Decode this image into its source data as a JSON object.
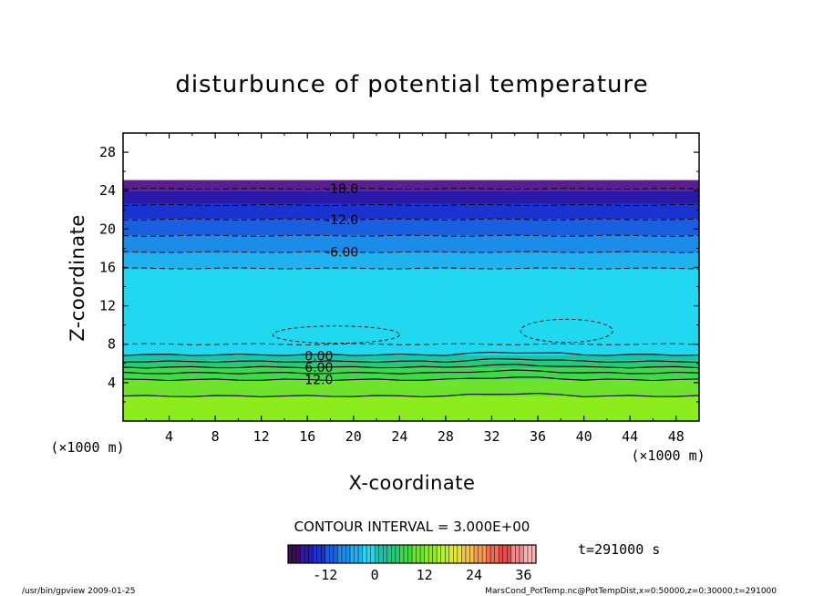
{
  "chart_data": {
    "type": "contour",
    "title": "disturbunce of potential temperature",
    "xlabel": "X-coordinate",
    "ylabel": "Z-coordinate",
    "x_unit_left": "(×1000 m)",
    "x_unit_right": "(×1000 m)",
    "xlim": [
      0,
      50
    ],
    "ylim": [
      0,
      30
    ],
    "x_ticks": [
      4,
      8,
      12,
      16,
      20,
      24,
      28,
      32,
      36,
      40,
      44,
      48
    ],
    "y_ticks": [
      4,
      8,
      12,
      16,
      20,
      24,
      28
    ],
    "contour_interval_text": "CONTOUR INTERVAL = 3.000E+00",
    "contour_labels": [
      {
        "text": "-18.0",
        "x": 19,
        "z": 24.2
      },
      {
        "text": "-12.0",
        "x": 19,
        "z": 21.0
      },
      {
        "text": "-6.00",
        "x": 19,
        "z": 17.6
      },
      {
        "text": "0.00",
        "x": 17,
        "z": 6.8
      },
      {
        "text": "6.00",
        "x": 17,
        "z": 5.6
      },
      {
        "text": "12.0",
        "x": 17,
        "z": 4.3
      }
    ],
    "layers": [
      {
        "z0": 0,
        "z1": 2.5,
        "color": "#8cec1c"
      },
      {
        "z0": 2.5,
        "z1": 4.3,
        "color": "#6ee32c"
      },
      {
        "z0": 4.3,
        "z1": 5.5,
        "color": "#3fd84a"
      },
      {
        "z0": 5.5,
        "z1": 6.3,
        "color": "#26c97a"
      },
      {
        "z0": 6.3,
        "z1": 6.9,
        "color": "#1bc4a8"
      },
      {
        "z0": 6.9,
        "z1": 15.8,
        "color": "#20d8ef"
      },
      {
        "z0": 15.8,
        "z1": 17.5,
        "color": "#1fb2ee"
      },
      {
        "z0": 17.5,
        "z1": 19.3,
        "color": "#1b8ce8"
      },
      {
        "z0": 19.3,
        "z1": 21.0,
        "color": "#1a5fe0"
      },
      {
        "z0": 21.0,
        "z1": 22.6,
        "color": "#1a32cf"
      },
      {
        "z0": 22.6,
        "z1": 24.0,
        "color": "#2a1aa9"
      },
      {
        "z0": 24.0,
        "z1": 25.1,
        "color": "#5a1e8e"
      }
    ],
    "colorbar": {
      "ticks": [
        -12,
        0,
        12,
        24,
        36
      ],
      "min": -21,
      "max": 39,
      "colors": [
        "#3d0a5a",
        "#2a1aa9",
        "#1a32cf",
        "#1a5fe0",
        "#1b8ce8",
        "#1fb2ee",
        "#20d8ef",
        "#1bc4a8",
        "#26c97a",
        "#3fd84a",
        "#6ee32c",
        "#8cec1c",
        "#b8ef2a",
        "#e6e63a",
        "#f2c24a",
        "#f49a52",
        "#f06c54",
        "#e84a50",
        "#f08a8a",
        "#f5b6b6"
      ]
    }
  },
  "time_label": "t=291000 s",
  "footer": {
    "left": "/usr/bin/gpview 2009-01-25",
    "right": "MarsCond_PotTemp.nc@PotTempDist,x=0:50000,z=0:30000,t=291000"
  }
}
